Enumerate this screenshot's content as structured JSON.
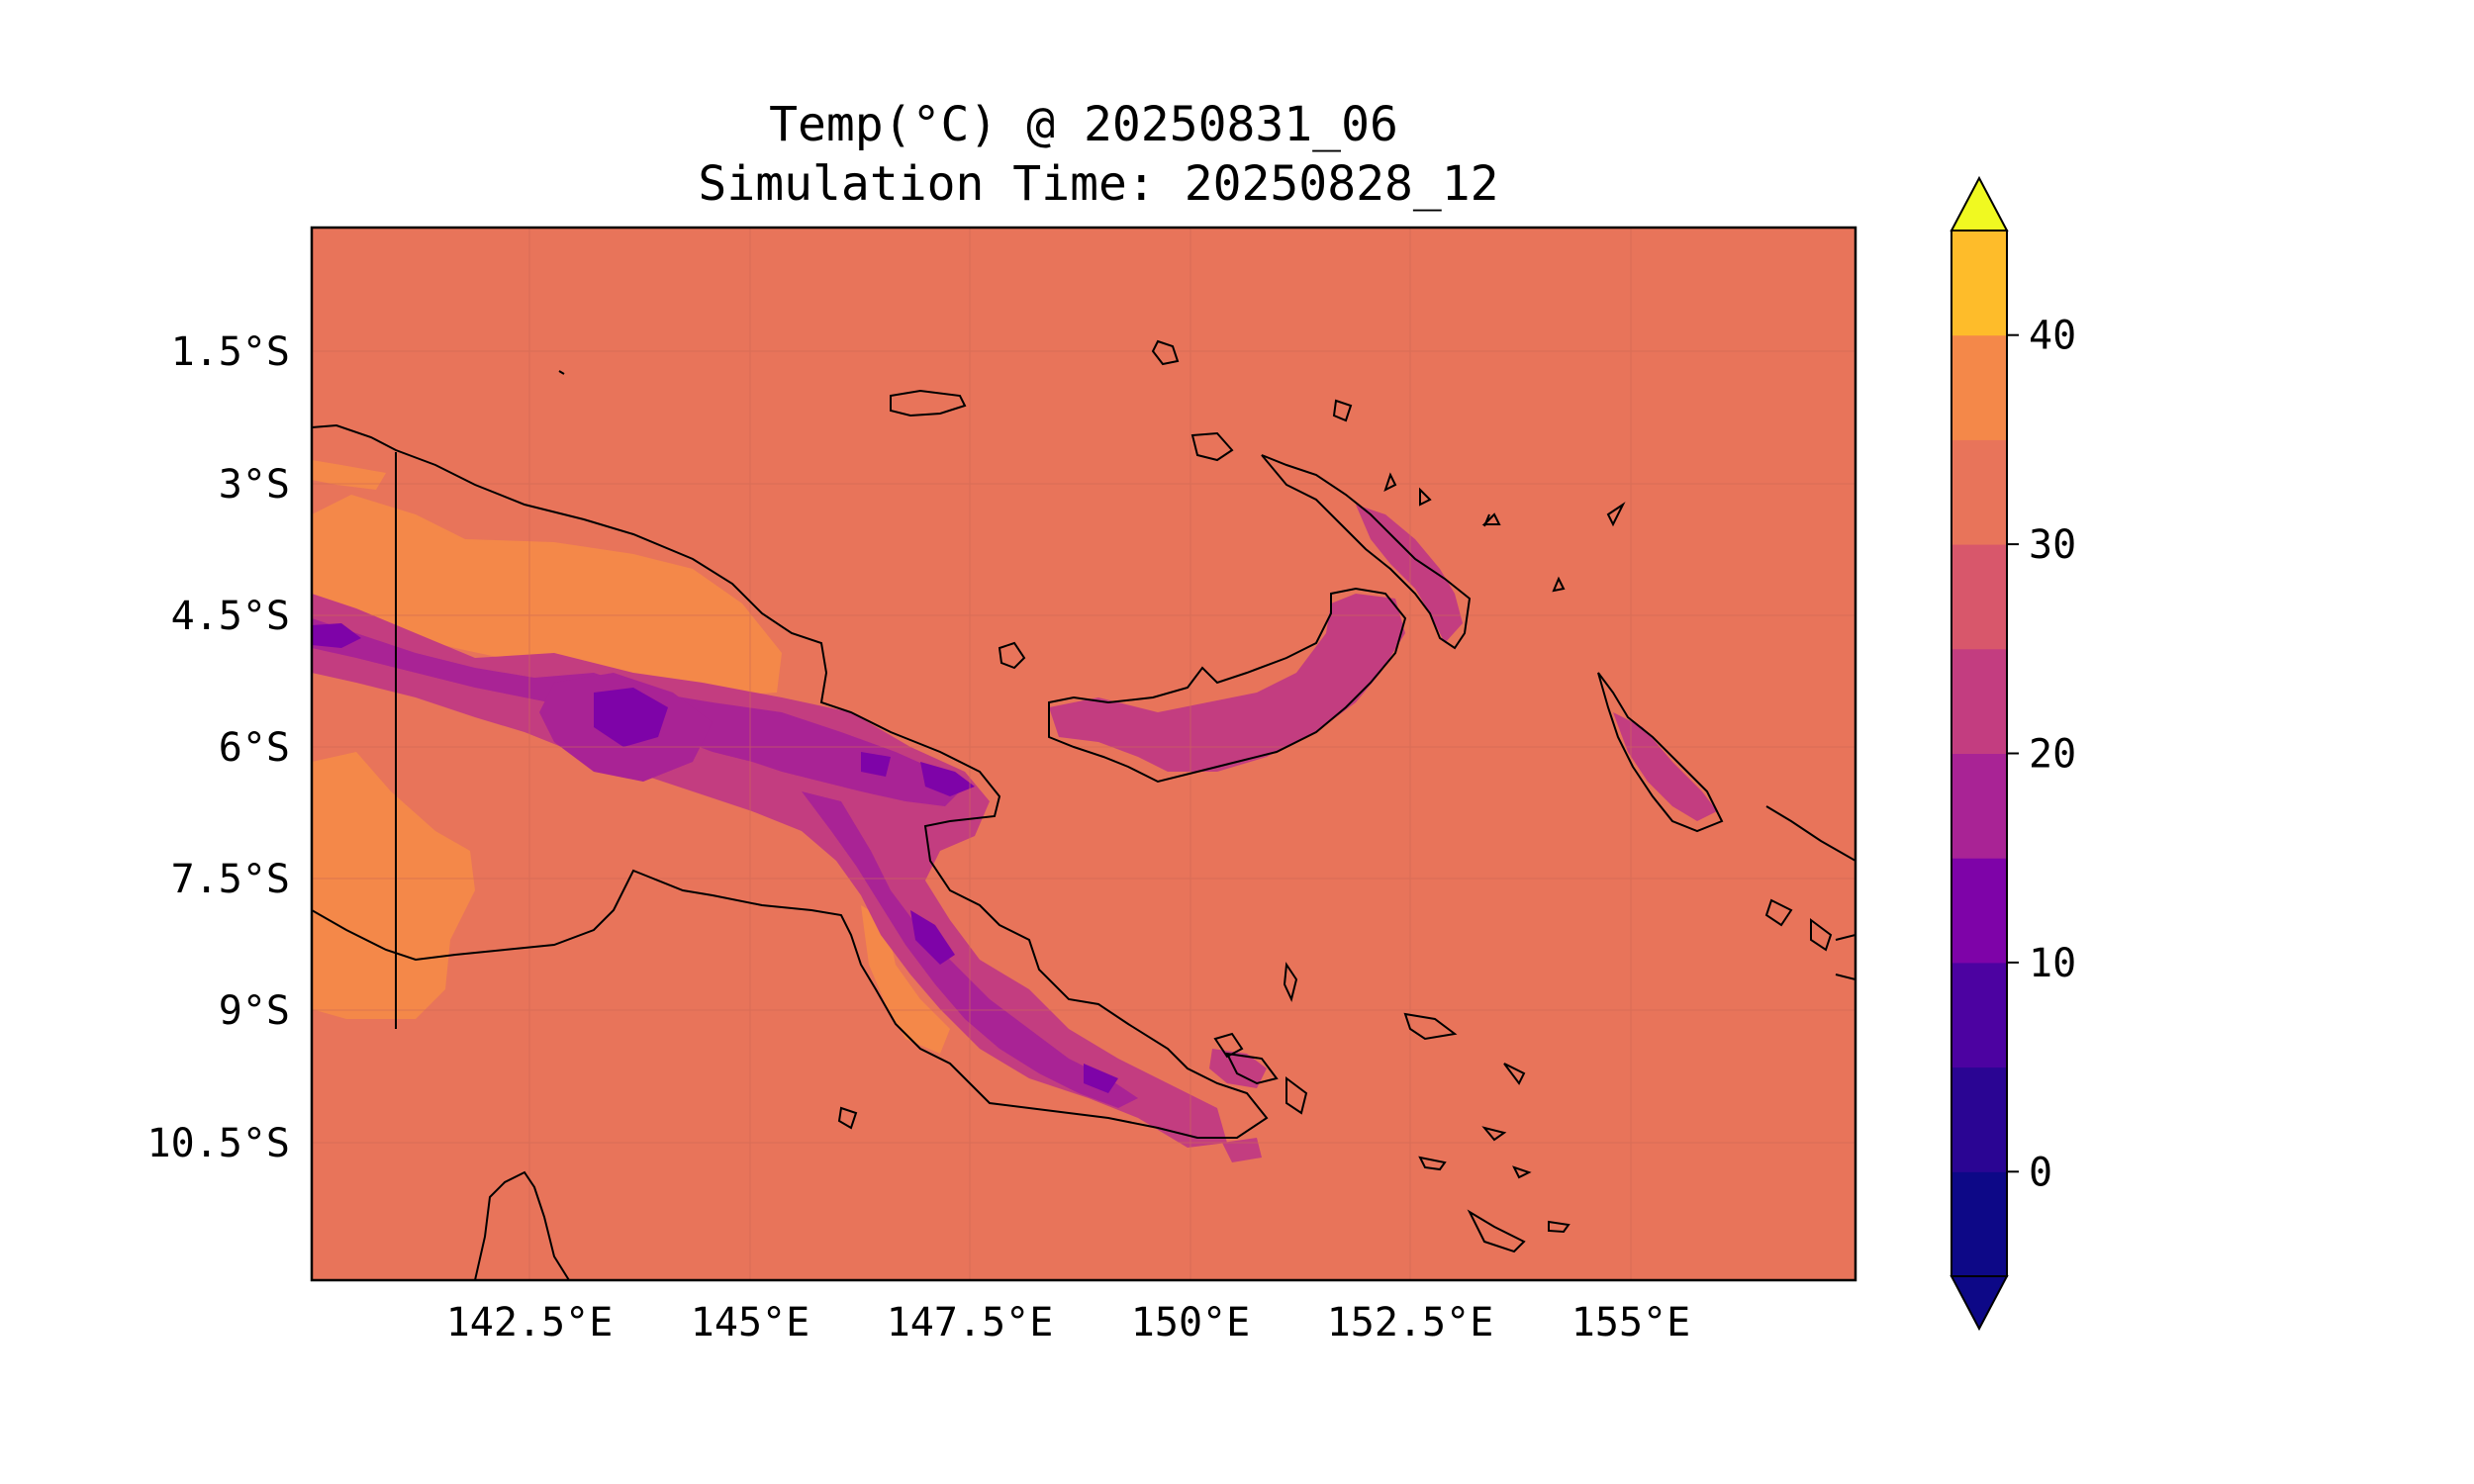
{
  "title": {
    "line1": "Temp(°C) @ 20250831_06",
    "line2": "Simulation Time: 20250828_12"
  },
  "map": {
    "background_color": "#e8745a",
    "lon_ticks": [
      "142.5°E",
      "145°E",
      "147.5°E",
      "150°E",
      "152.5°E",
      "155°E"
    ],
    "lat_ticks": [
      "1.5°S",
      "3°S",
      "4.5°S",
      "6°S",
      "7.5°S",
      "9°S",
      "10.5°S"
    ],
    "lon_values": [
      142.5,
      145,
      147.5,
      150,
      152.5,
      155
    ],
    "lat_values": [
      -1.5,
      -3,
      -4.5,
      -6,
      -7.5,
      -9,
      -10.5
    ],
    "extent": {
      "lon": [
        140,
        157.5
      ],
      "lat": [
        -12,
        0
      ]
    },
    "grid": true
  },
  "colorbar": {
    "tick_labels": [
      "0",
      "10",
      "20",
      "30",
      "40"
    ],
    "tick_values": [
      0,
      10,
      20,
      30,
      40
    ],
    "levels": [
      -5,
      0,
      5,
      10,
      15,
      20,
      25,
      30,
      35,
      40,
      45
    ],
    "extend": "both",
    "colors": [
      "#0d0887",
      "#2a0593",
      "#4c02a1",
      "#7e03a8",
      "#a92395",
      "#c33d80",
      "#d8576b",
      "#e8745a",
      "#f48849",
      "#febc2a",
      "#f0f921"
    ],
    "under_color": "#0d0887",
    "over_color": "#f0f921"
  }
}
